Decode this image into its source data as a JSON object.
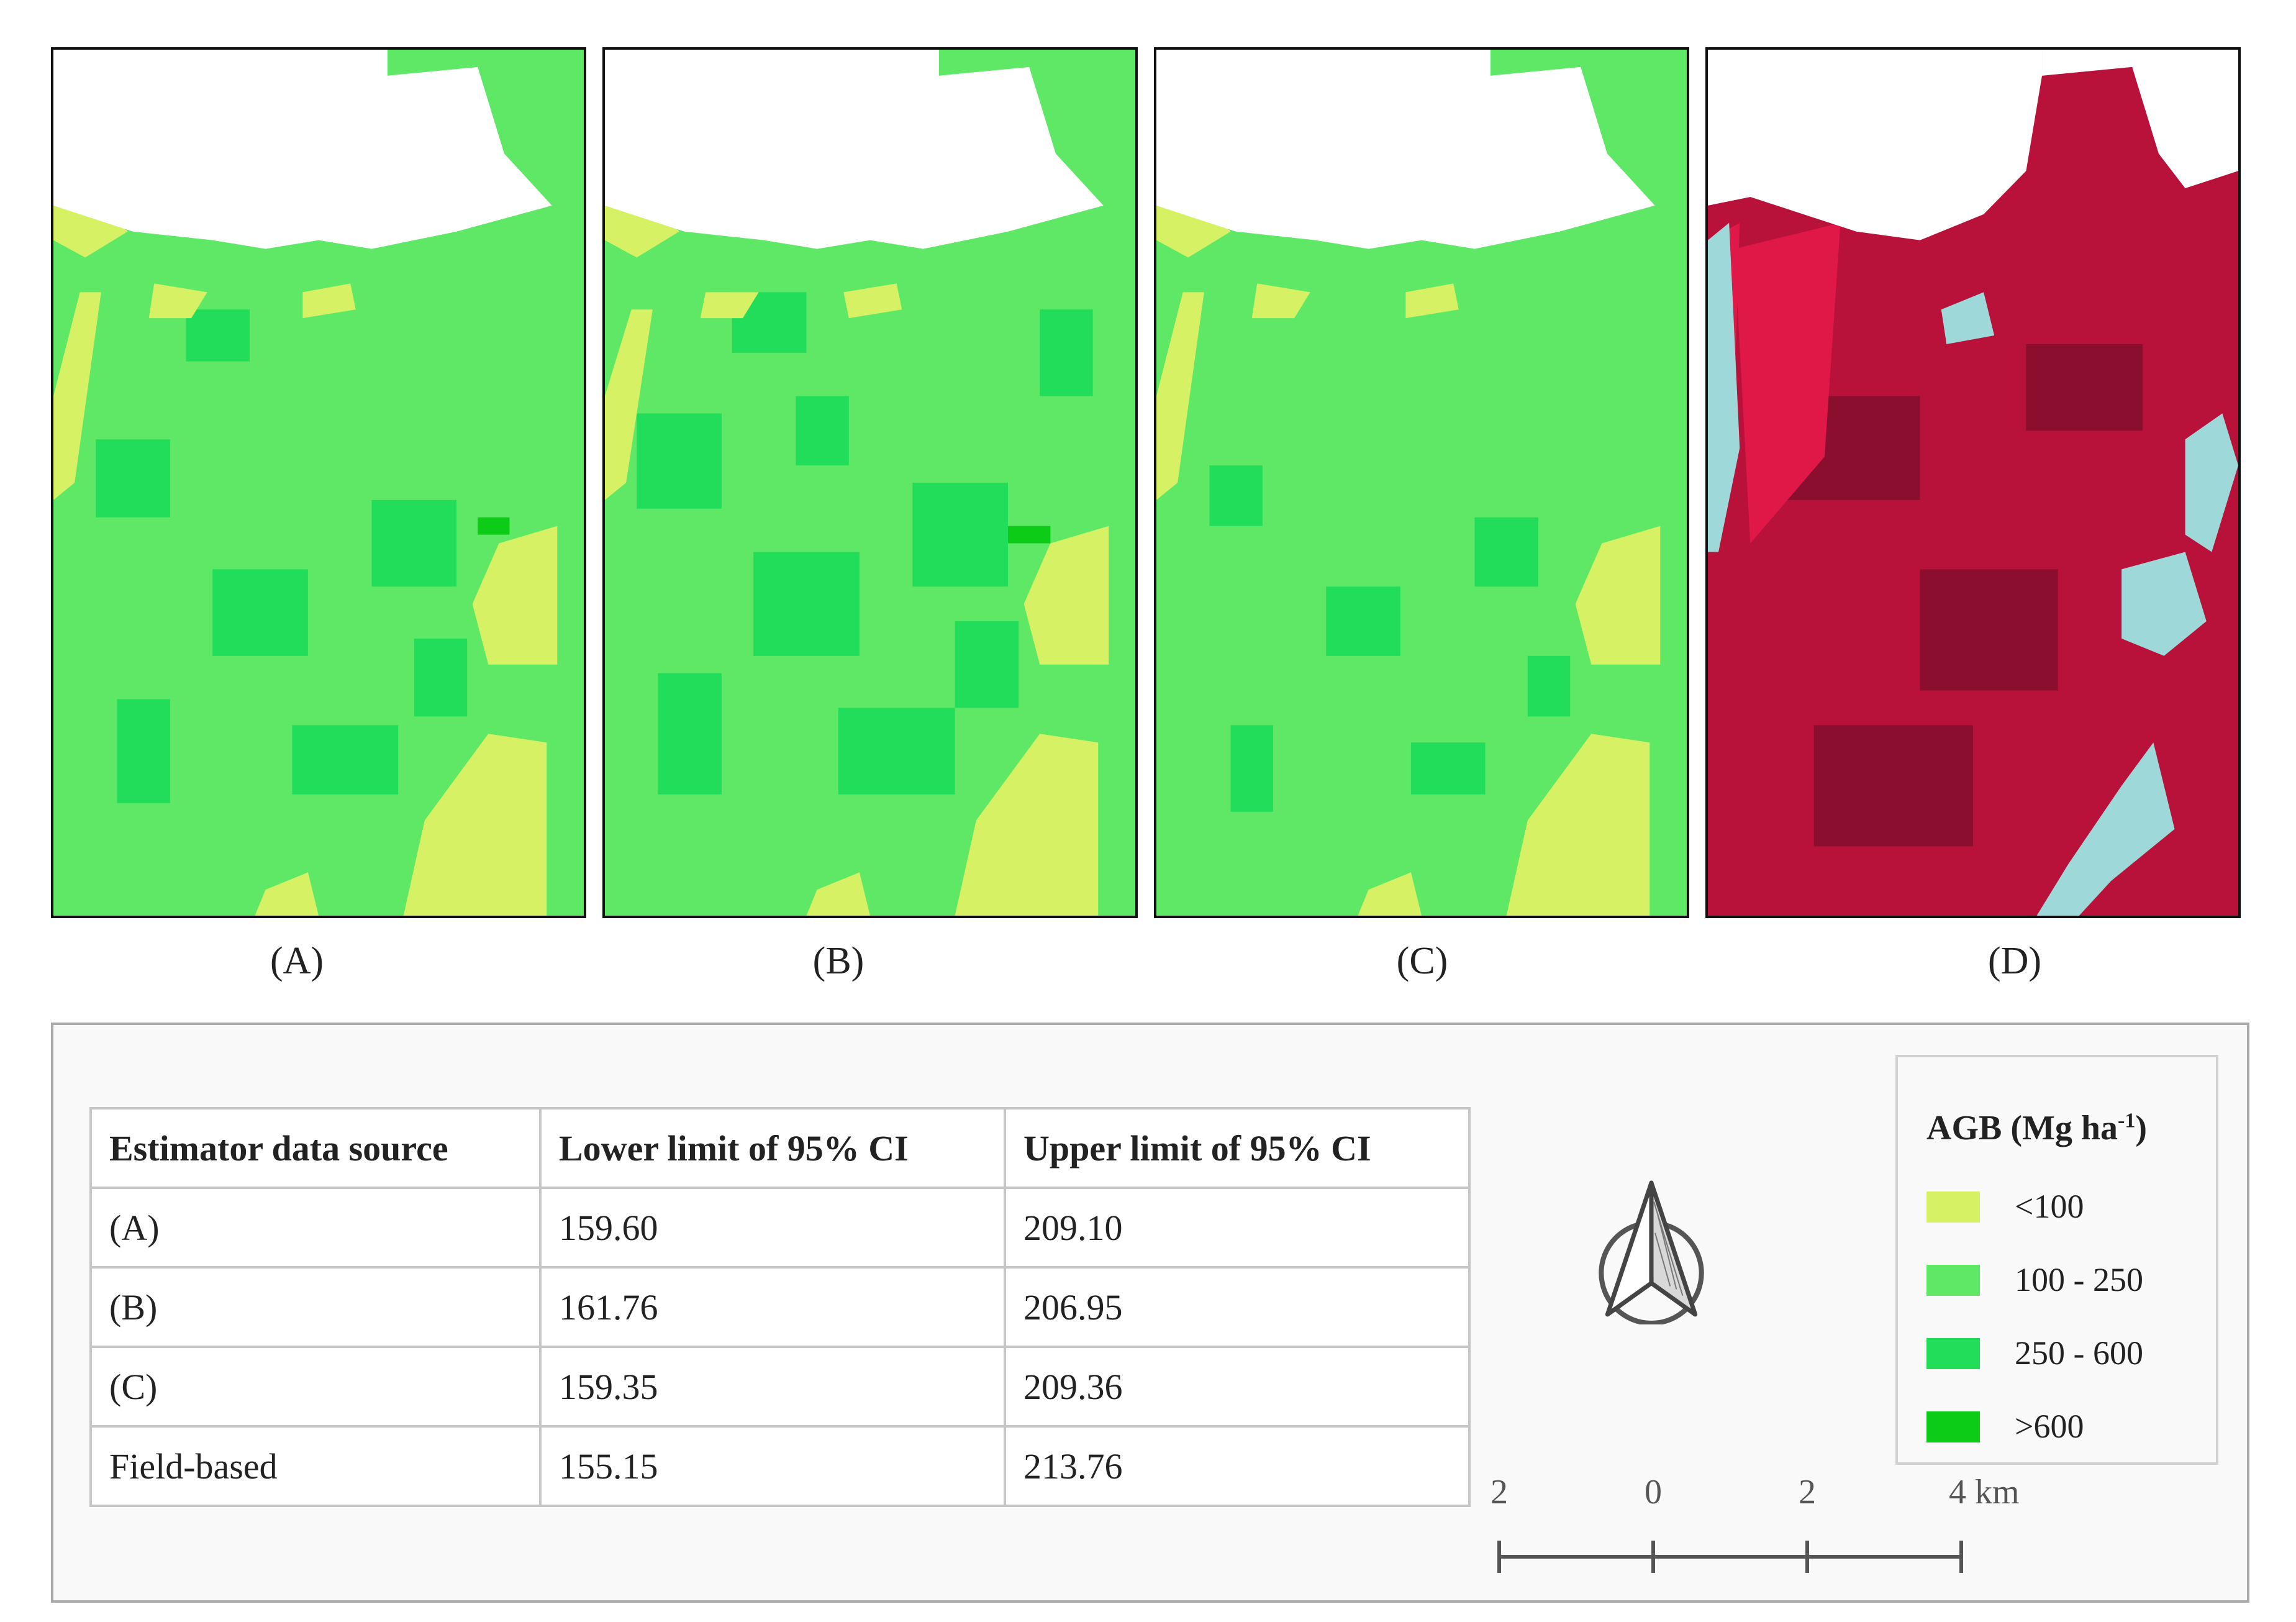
{
  "panels": [
    {
      "label": "(A)",
      "kind": "agb-map"
    },
    {
      "label": "(B)",
      "kind": "agb-map"
    },
    {
      "label": "(C)",
      "kind": "agb-map"
    },
    {
      "label": "(D)",
      "kind": "false-color-image"
    }
  ],
  "table": {
    "headers": [
      "Estimator data source",
      "Lower limit of 95% CI",
      "Upper limit of 95% CI"
    ],
    "rows": [
      {
        "source": "(A)",
        "lower": "159.60",
        "upper": "209.10"
      },
      {
        "source": "(B)",
        "lower": "161.76",
        "upper": "206.95"
      },
      {
        "source": "(C)",
        "lower": "159.35",
        "upper": "209.36"
      },
      {
        "source": "Field-based",
        "lower": "155.15",
        "upper": "213.76"
      }
    ]
  },
  "legend": {
    "title": "AGB (Mg ha",
    "title_sup": "-1",
    "title_close": ")",
    "items": [
      {
        "label": "<100",
        "color": "#d6f264"
      },
      {
        "label": "100 - 250",
        "color": "#5fe866"
      },
      {
        "label": "250 - 600",
        "color": "#22dd5a"
      },
      {
        "label": ">600",
        "color": "#0ccc18"
      }
    ]
  },
  "north_arrow": {
    "icon": "north-arrow-icon"
  },
  "scale_bar": {
    "labels": [
      "2",
      "0",
      "2",
      "4 km"
    ]
  },
  "colors": {
    "no_data": "#ffffff",
    "false_color_vegetation": "#c8143c",
    "false_color_bare": "#9ed8d8"
  }
}
